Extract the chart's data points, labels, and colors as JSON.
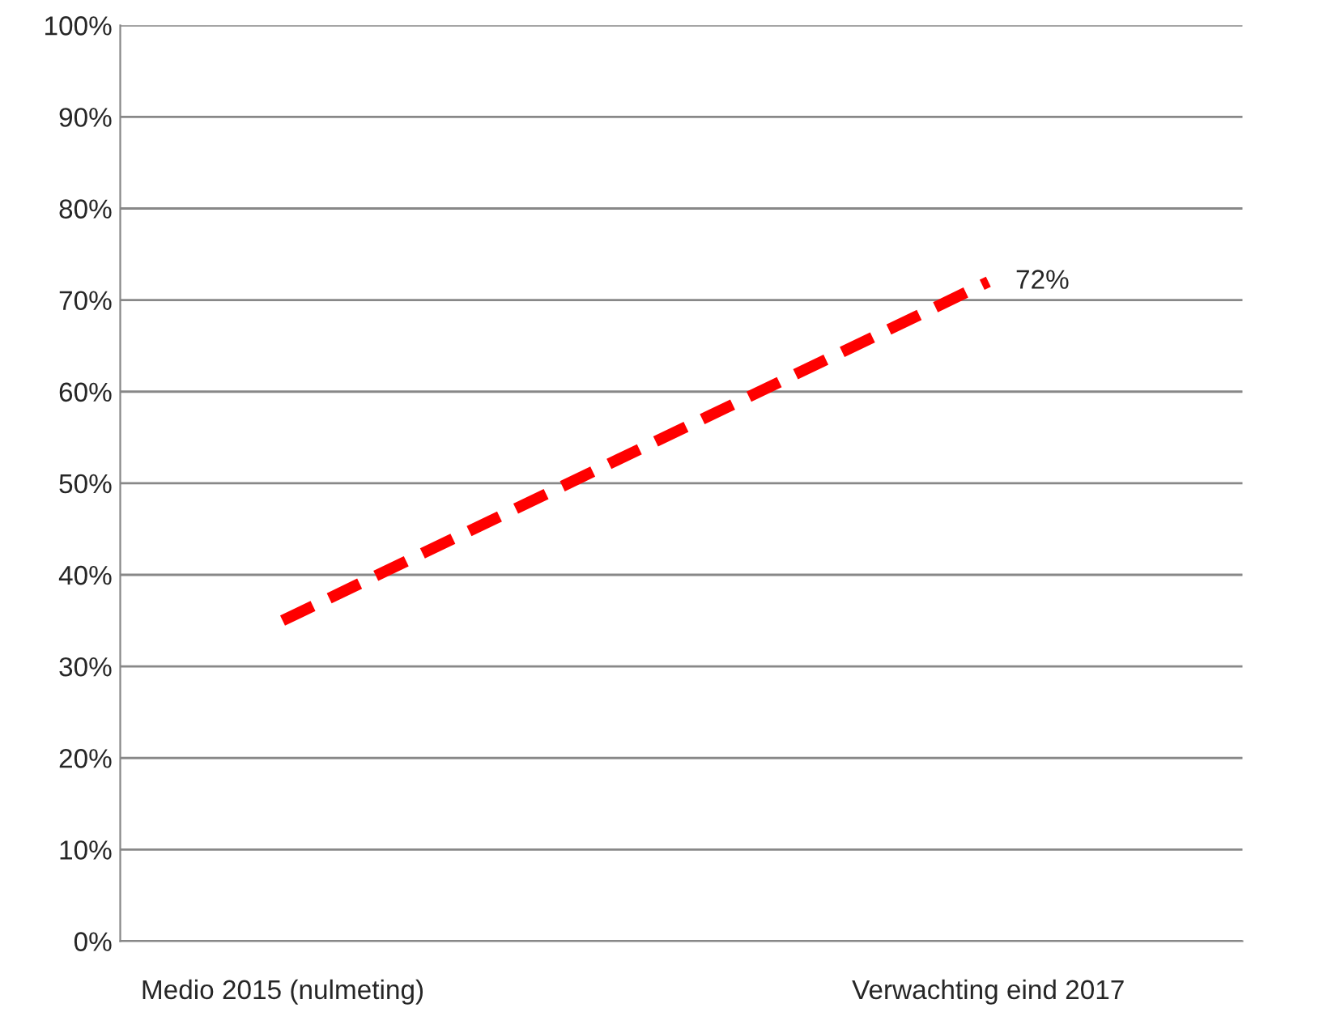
{
  "chart_data": {
    "type": "line",
    "categories": [
      "Medio 2015 (nulmeting)",
      "Verwachting eind 2017"
    ],
    "series": [
      {
        "color": "#ff0000",
        "values": [
          35,
          72
        ],
        "value_labels": [
          null,
          "72%"
        ]
      }
    ],
    "ylim": [
      0,
      100
    ],
    "yticks": [
      {
        "value": 0,
        "label": "0%"
      },
      {
        "value": 10,
        "label": "10%"
      },
      {
        "value": 20,
        "label": "20%"
      },
      {
        "value": 30,
        "label": "30%"
      },
      {
        "value": 40,
        "label": "40%"
      },
      {
        "value": 50,
        "label": "50%"
      },
      {
        "value": 60,
        "label": "60%"
      },
      {
        "value": 70,
        "label": "70%"
      },
      {
        "value": 80,
        "label": "80%"
      },
      {
        "value": 90,
        "label": "90%"
      },
      {
        "value": 100,
        "label": "100%"
      }
    ],
    "grid": "y",
    "line_style": "dashed",
    "marker": "none"
  }
}
